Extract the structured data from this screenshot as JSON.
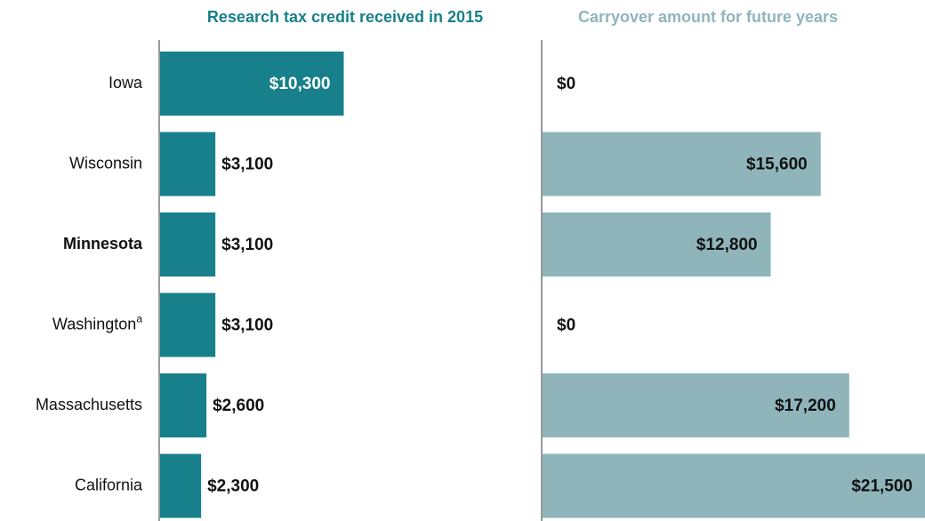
{
  "chart_data": {
    "type": "bar",
    "categories": [
      "Iowa",
      "Wisconsin",
      "Minnesota",
      "Washington",
      "Massachusetts",
      "California"
    ],
    "category_notes": [
      null,
      null,
      null,
      "a",
      null,
      null
    ],
    "highlight_index": 2,
    "xlim": [
      0,
      21500
    ],
    "series": [
      {
        "name": "Research tax credit received in 2015",
        "color": "#17808a",
        "values": [
          10300,
          3100,
          3100,
          3100,
          2600,
          2300
        ],
        "value_labels": [
          "$10,300",
          "$3,100",
          "$3,100",
          "$3,100",
          "$2,600",
          "$2,300"
        ]
      },
      {
        "name": "Carryover amount for future years",
        "color": "#8fb5bb",
        "values": [
          0,
          15600,
          12800,
          0,
          17200,
          21500
        ],
        "value_labels": [
          "$0",
          "$15,600",
          "$12,800",
          "$0",
          "$17,200",
          "$21,500"
        ]
      }
    ]
  }
}
